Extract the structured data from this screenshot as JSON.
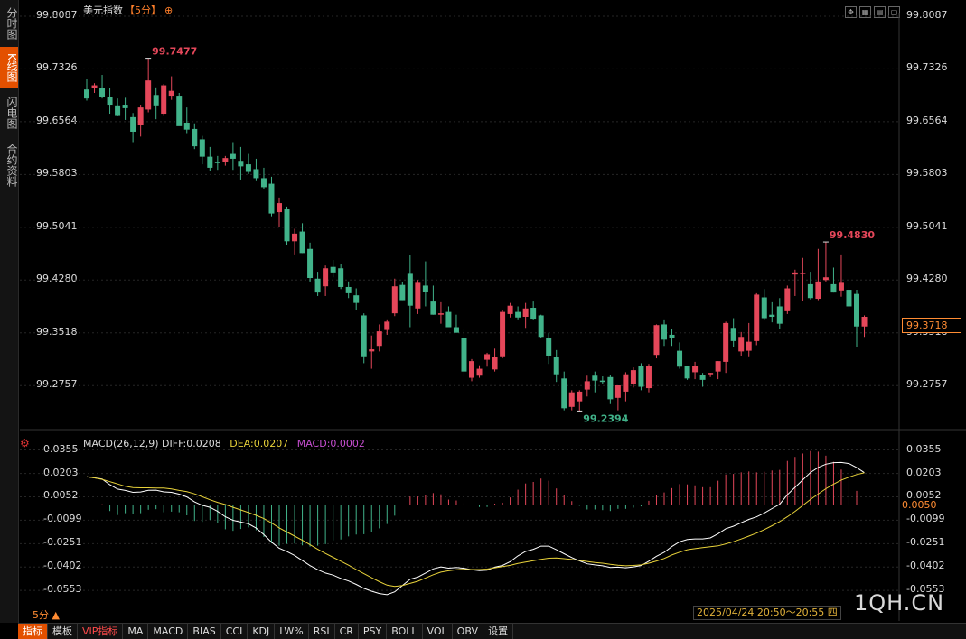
{
  "sidebar": {
    "tabs": [
      {
        "label": "分时图",
        "active": false
      },
      {
        "label": "K线图",
        "active": true
      },
      {
        "label": "闪电图",
        "active": false
      },
      {
        "label": "合约资料",
        "active": false
      }
    ]
  },
  "header": {
    "name": "美元指数",
    "period": "【5分】",
    "add_symbol": "⊕"
  },
  "toolbar": {
    "icons": [
      "expand-icon",
      "grid-icon",
      "document-icon",
      "window-icon"
    ]
  },
  "colors": {
    "up": "#e5475a",
    "down": "#41b38a",
    "diff": "#ffffff",
    "dea": "#e8d23a",
    "accent": "#ff8c33"
  },
  "chart_data": [
    {
      "type": "candlestick",
      "title": "美元指数",
      "ylim": [
        99.22,
        99.8087
      ],
      "yticks": [
        "99.8087",
        "99.7326",
        "99.6564",
        "99.5803",
        "99.5041",
        "99.4280",
        "99.3518",
        "99.2757"
      ],
      "current_price": "99.3718",
      "max_label": "99.7477",
      "min_label": "99.2394",
      "last_high_label": "99.4830",
      "candles": [
        [
          99.703,
          99.718,
          99.687,
          99.69
        ],
        [
          99.705,
          99.712,
          99.698,
          99.709
        ],
        [
          99.705,
          99.724,
          99.69,
          99.692
        ],
        [
          99.692,
          99.705,
          99.668,
          99.681
        ],
        [
          99.68,
          99.69,
          99.665,
          99.666
        ],
        [
          99.681,
          99.691,
          99.659,
          99.676
        ],
        [
          99.663,
          99.669,
          99.627,
          99.642
        ],
        [
          99.652,
          99.681,
          99.635,
          99.677
        ],
        [
          99.674,
          99.748,
          99.67,
          99.716
        ],
        [
          99.695,
          99.706,
          99.66,
          99.68
        ],
        [
          99.668,
          99.711,
          99.666,
          99.709
        ],
        [
          99.694,
          99.722,
          99.688,
          99.701
        ],
        [
          99.694,
          99.698,
          99.651,
          99.65
        ],
        [
          99.655,
          99.677,
          99.64,
          99.645
        ],
        [
          99.646,
          99.654,
          99.617,
          99.621
        ],
        [
          99.631,
          99.636,
          99.595,
          99.606
        ],
        [
          99.606,
          99.62,
          99.585,
          99.59
        ],
        [
          99.598,
          99.607,
          99.587,
          99.597
        ],
        [
          99.598,
          99.607,
          99.593,
          99.604
        ],
        [
          99.61,
          99.627,
          99.587,
          99.603
        ],
        [
          99.6,
          99.62,
          99.573,
          99.592
        ],
        [
          99.595,
          99.61,
          99.581,
          99.584
        ],
        [
          99.588,
          99.603,
          99.572,
          99.575
        ],
        [
          99.575,
          99.59,
          99.56,
          99.562
        ],
        [
          99.567,
          99.577,
          99.52,
          99.524
        ],
        [
          99.526,
          99.547,
          99.505,
          99.539
        ],
        [
          99.53,
          99.534,
          99.478,
          99.484
        ],
        [
          99.484,
          99.502,
          99.465,
          99.495
        ],
        [
          99.498,
          99.51,
          99.467,
          99.467
        ],
        [
          99.473,
          99.482,
          99.425,
          99.431
        ],
        [
          99.43,
          99.44,
          99.405,
          99.41
        ],
        [
          99.419,
          99.449,
          99.405,
          99.445
        ],
        [
          99.447,
          99.457,
          99.432,
          99.439
        ],
        [
          99.445,
          99.451,
          99.415,
          99.418
        ],
        [
          99.418,
          99.426,
          99.402,
          99.409
        ],
        [
          99.406,
          99.416,
          99.385,
          99.395
        ],
        [
          99.377,
          99.38,
          99.308,
          99.318
        ],
        [
          99.325,
          99.348,
          99.3,
          99.328
        ],
        [
          99.333,
          99.364,
          99.325,
          99.354
        ],
        [
          99.356,
          99.37,
          99.349,
          99.368
        ],
        [
          99.38,
          99.43,
          99.376,
          99.419
        ],
        [
          99.421,
          99.425,
          99.399,
          99.399
        ],
        [
          99.437,
          99.464,
          99.36,
          99.391
        ],
        [
          99.387,
          99.428,
          99.379,
          99.424
        ],
        [
          99.42,
          99.455,
          99.39,
          99.411
        ],
        [
          99.397,
          99.42,
          99.378,
          99.378
        ],
        [
          99.378,
          99.396,
          99.365,
          99.38
        ],
        [
          99.382,
          99.39,
          99.362,
          99.36
        ],
        [
          99.36,
          99.378,
          99.352,
          99.352
        ],
        [
          99.344,
          99.357,
          99.288,
          99.296
        ],
        [
          99.287,
          99.314,
          99.282,
          99.311
        ],
        [
          99.29,
          99.305,
          99.287,
          99.3
        ],
        [
          99.313,
          99.323,
          99.303,
          99.321
        ],
        [
          99.299,
          99.329,
          99.296,
          99.317
        ],
        [
          99.318,
          99.385,
          99.315,
          99.382
        ],
        [
          99.379,
          99.395,
          99.374,
          99.391
        ],
        [
          99.382,
          99.39,
          99.37,
          99.374
        ],
        [
          99.375,
          99.395,
          99.359,
          99.387
        ],
        [
          99.388,
          99.397,
          99.37,
          99.371
        ],
        [
          99.377,
          99.378,
          99.345,
          99.346
        ],
        [
          99.345,
          99.352,
          99.307,
          99.319
        ],
        [
          99.317,
          99.327,
          99.281,
          99.292
        ],
        [
          99.286,
          99.296,
          99.24,
          99.243
        ],
        [
          99.245,
          99.269,
          99.24,
          99.266
        ],
        [
          99.253,
          99.269,
          99.239,
          99.267
        ],
        [
          99.27,
          99.29,
          99.26,
          99.282
        ],
        [
          99.29,
          99.296,
          99.266,
          99.283
        ],
        [
          99.283,
          99.289,
          99.278,
          99.281
        ],
        [
          99.288,
          99.291,
          99.249,
          99.256
        ],
        [
          99.258,
          99.276,
          99.24,
          99.276
        ],
        [
          99.267,
          99.295,
          99.253,
          99.292
        ],
        [
          99.278,
          99.302,
          99.273,
          99.298
        ],
        [
          99.304,
          99.308,
          99.269,
          99.274
        ],
        [
          99.272,
          99.307,
          99.266,
          99.304
        ],
        [
          99.32,
          99.364,
          99.315,
          99.363
        ],
        [
          99.364,
          99.37,
          99.333,
          99.342
        ],
        [
          99.349,
          99.358,
          99.333,
          99.344
        ],
        [
          99.326,
          99.338,
          99.3,
          99.303
        ],
        [
          99.304,
          99.304,
          99.284,
          99.286
        ],
        [
          99.295,
          99.31,
          99.285,
          99.304
        ],
        [
          99.291,
          99.294,
          99.274,
          99.284
        ],
        [
          99.292,
          99.294,
          99.288,
          99.294
        ],
        [
          99.296,
          99.311,
          99.285,
          99.311
        ],
        [
          99.31,
          99.368,
          99.294,
          99.366
        ],
        [
          99.359,
          99.373,
          99.331,
          99.34
        ],
        [
          99.325,
          99.353,
          99.319,
          99.346
        ],
        [
          99.326,
          99.366,
          99.318,
          99.339
        ],
        [
          99.34,
          99.409,
          99.334,
          99.407
        ],
        [
          99.403,
          99.415,
          99.37,
          99.373
        ],
        [
          99.378,
          99.396,
          99.367,
          99.375
        ],
        [
          99.39,
          99.402,
          99.358,
          99.365
        ],
        [
          99.383,
          99.42,
          99.379,
          99.416
        ],
        [
          99.436,
          99.443,
          99.405,
          99.439
        ],
        [
          99.437,
          99.46,
          99.398,
          99.438
        ],
        [
          99.422,
          99.44,
          99.4,
          99.402
        ],
        [
          99.401,
          99.473,
          99.399,
          99.426
        ],
        [
          99.428,
          99.483,
          99.426,
          99.432
        ],
        [
          99.422,
          99.446,
          99.41,
          99.41
        ],
        [
          99.413,
          99.465,
          99.404,
          99.424
        ],
        [
          99.414,
          99.423,
          99.386,
          99.39
        ],
        [
          99.408,
          99.414,
          99.332,
          99.361
        ],
        [
          99.361,
          99.377,
          99.346,
          99.375
        ]
      ]
    },
    {
      "type": "macd",
      "title": "MACD(26,12,9)",
      "diff_label": "DIFF:0.0208",
      "dea_label": "DEA:0.0207",
      "macd_label": "MACD:0.0002",
      "current_value": "0.0050",
      "ylim": [
        -0.0628,
        0.0393
      ],
      "yticks": [
        "0.0355",
        "0.0203",
        "0.0052",
        "-0.0099",
        "-0.0251",
        "-0.0402",
        "-0.0553"
      ],
      "diff": [
        0.0181,
        0.0175,
        0.0167,
        0.013,
        0.0102,
        0.0093,
        0.0081,
        0.0083,
        0.0094,
        0.0095,
        0.0084,
        0.0081,
        0.0069,
        0.0051,
        0.0019,
        -0.0003,
        -0.0016,
        -0.0042,
        -0.0077,
        -0.01,
        -0.0111,
        -0.0123,
        -0.015,
        -0.0193,
        -0.0241,
        -0.0281,
        -0.0302,
        -0.0327,
        -0.036,
        -0.0393,
        -0.0419,
        -0.0441,
        -0.0454,
        -0.0476,
        -0.0492,
        -0.0514,
        -0.054,
        -0.0558,
        -0.0573,
        -0.0581,
        -0.0562,
        -0.0521,
        -0.0481,
        -0.0467,
        -0.0441,
        -0.0414,
        -0.0401,
        -0.0409,
        -0.0405,
        -0.041,
        -0.042,
        -0.0425,
        -0.0422,
        -0.0403,
        -0.0392,
        -0.0367,
        -0.033,
        -0.0301,
        -0.0287,
        -0.0267,
        -0.0267,
        -0.029,
        -0.0316,
        -0.0341,
        -0.0362,
        -0.0381,
        -0.0388,
        -0.0394,
        -0.0405,
        -0.0403,
        -0.0407,
        -0.0401,
        -0.0393,
        -0.0364,
        -0.0332,
        -0.0307,
        -0.027,
        -0.0239,
        -0.0224,
        -0.022,
        -0.022,
        -0.0214,
        -0.0187,
        -0.0154,
        -0.0138,
        -0.0116,
        -0.0094,
        -0.0078,
        -0.0053,
        -0.0024,
        0.0004,
        0.0065,
        0.0113,
        0.0162,
        0.0209,
        0.0242,
        0.0263,
        0.0273,
        0.0274,
        0.0267,
        0.0241,
        0.0208
      ],
      "dea": [
        0.0181,
        0.0174,
        0.0165,
        0.015,
        0.0135,
        0.012,
        0.0112,
        0.011,
        0.011,
        0.0109,
        0.0108,
        0.0103,
        0.0093,
        0.0085,
        0.0071,
        0.0052,
        0.0033,
        0.0016,
        0.0002,
        -0.0016,
        -0.0033,
        -0.005,
        -0.0068,
        -0.0089,
        -0.0117,
        -0.0149,
        -0.0176,
        -0.0202,
        -0.0229,
        -0.0258,
        -0.0287,
        -0.0314,
        -0.0339,
        -0.0364,
        -0.039,
        -0.0418,
        -0.0445,
        -0.0471,
        -0.0497,
        -0.0519,
        -0.0527,
        -0.0521,
        -0.0508,
        -0.0494,
        -0.0473,
        -0.0452,
        -0.0435,
        -0.0426,
        -0.0419,
        -0.0416,
        -0.0418,
        -0.0418,
        -0.0415,
        -0.0407,
        -0.0399,
        -0.0391,
        -0.0379,
        -0.037,
        -0.0361,
        -0.0352,
        -0.0345,
        -0.0343,
        -0.0348,
        -0.0353,
        -0.0359,
        -0.0366,
        -0.0373,
        -0.0377,
        -0.0385,
        -0.039,
        -0.0394,
        -0.0392,
        -0.0388,
        -0.0377,
        -0.0363,
        -0.0347,
        -0.0324,
        -0.0306,
        -0.029,
        -0.0283,
        -0.0277,
        -0.0271,
        -0.0265,
        -0.0252,
        -0.0238,
        -0.0221,
        -0.0202,
        -0.0183,
        -0.016,
        -0.0135,
        -0.0109,
        -0.0077,
        -0.0042,
        -0.0004,
        0.0035,
        0.007,
        0.0104,
        0.0134,
        0.016,
        0.0179,
        0.0196,
        0.0207
      ]
    }
  ],
  "bottom_tabs": [
    {
      "label": "指标",
      "active": true
    },
    {
      "label": "模板",
      "active": false
    },
    {
      "label": "VIP指标",
      "active": false,
      "vip": true
    },
    {
      "label": "MA",
      "active": false
    },
    {
      "label": "MACD",
      "active": false
    },
    {
      "label": "BIAS",
      "active": false
    },
    {
      "label": "CCI",
      "active": false
    },
    {
      "label": "KDJ",
      "active": false
    },
    {
      "label": "LW%",
      "active": false
    },
    {
      "label": "RSI",
      "active": false
    },
    {
      "label": "CR",
      "active": false
    },
    {
      "label": "PSY",
      "active": false
    },
    {
      "label": "BOLL",
      "active": false
    },
    {
      "label": "VOL",
      "active": false
    },
    {
      "label": "OBV",
      "active": false
    },
    {
      "label": "设置",
      "active": false
    }
  ],
  "period_button": "5分 ▲",
  "time_range": "2025/04/24 20:50～20:55 四",
  "watermark": "1QH.CN"
}
